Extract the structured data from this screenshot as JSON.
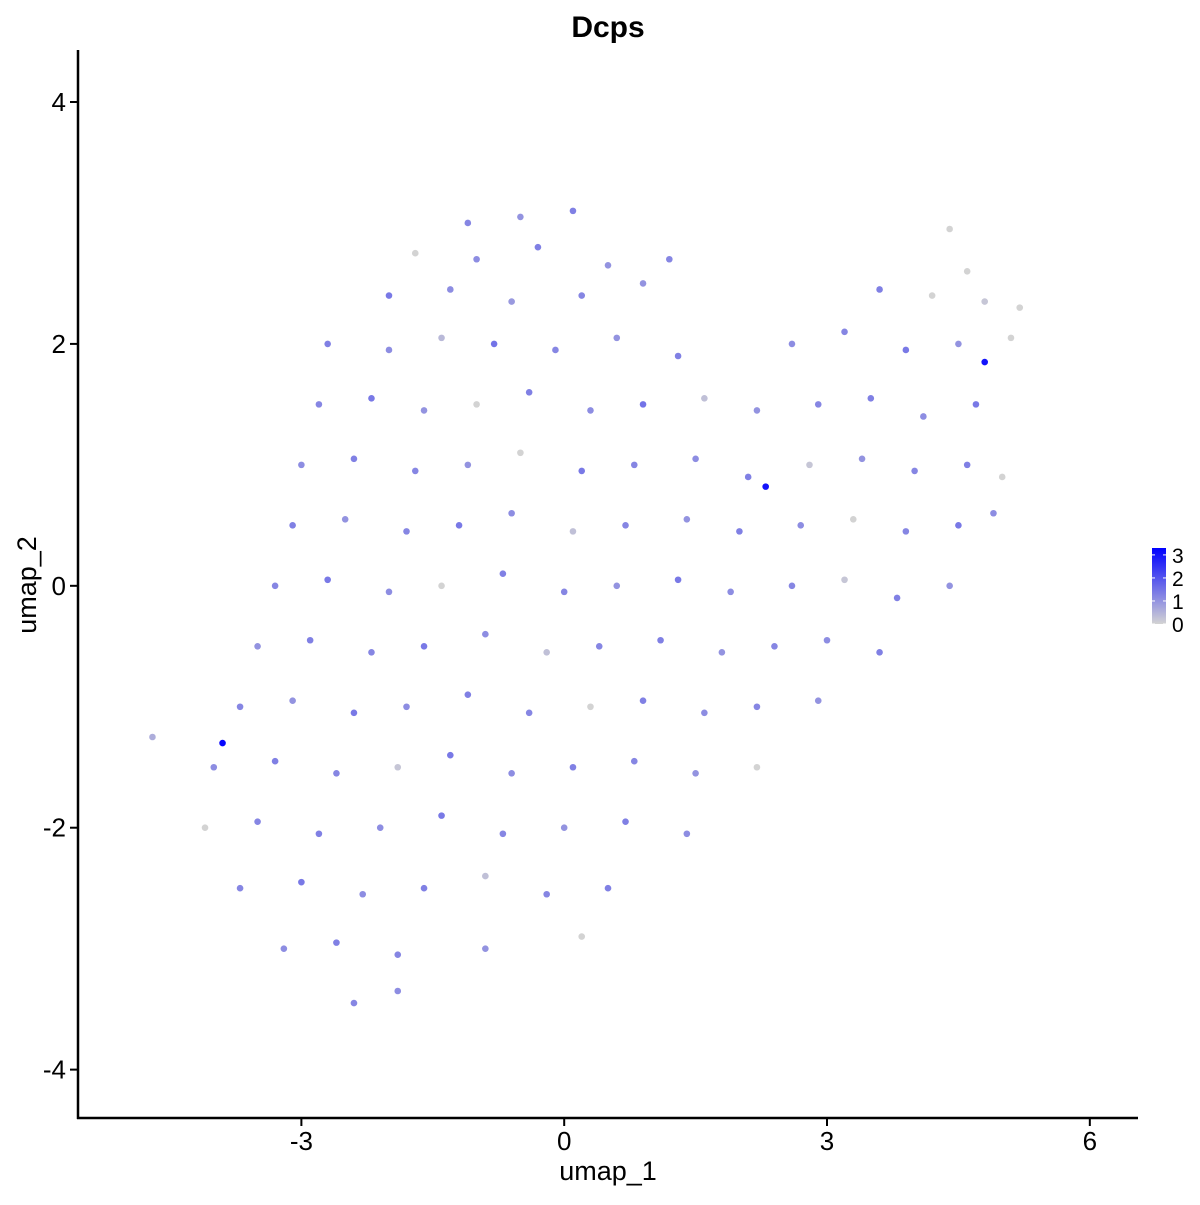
{
  "chart_data": {
    "type": "scatter",
    "title": "Dcps",
    "xlabel": "umap_1",
    "ylabel": "umap_2",
    "xlim": [
      -5.55,
      6.55
    ],
    "ylim": [
      -4.4,
      4.43
    ],
    "xticks": [
      -3,
      0,
      3,
      6
    ],
    "yticks": [
      -4,
      -2,
      0,
      2,
      4
    ],
    "x": [
      -1.1,
      -0.5,
      0.1,
      4.4,
      -1.7,
      -1.0,
      -0.3,
      0.5,
      1.2,
      4.6,
      -2.0,
      -1.3,
      -0.6,
      0.2,
      0.9,
      3.6,
      4.2,
      4.8,
      5.2,
      -2.7,
      -2.0,
      -1.4,
      -0.8,
      -0.1,
      0.6,
      1.3,
      2.6,
      3.2,
      3.9,
      4.5,
      5.1,
      -2.8,
      -2.2,
      -1.6,
      -1.0,
      -0.4,
      0.3,
      0.9,
      1.6,
      2.2,
      2.9,
      3.5,
      4.1,
      4.7,
      -3.0,
      -2.4,
      -1.7,
      -1.1,
      -0.5,
      0.2,
      0.8,
      1.5,
      2.1,
      2.8,
      3.4,
      4.0,
      4.6,
      5.0,
      -3.1,
      -2.5,
      -1.8,
      -1.2,
      -0.6,
      0.1,
      0.7,
      1.4,
      2.0,
      2.7,
      3.3,
      3.9,
      4.5,
      4.9,
      -3.3,
      -2.7,
      -2.0,
      -1.4,
      -0.7,
      0.0,
      0.6,
      1.3,
      1.9,
      2.6,
      3.2,
      3.8,
      4.4,
      -3.5,
      -2.9,
      -2.2,
      -1.6,
      -0.9,
      -0.2,
      0.4,
      1.1,
      1.8,
      2.4,
      3.0,
      3.6,
      -3.7,
      -3.1,
      -2.4,
      -1.8,
      -1.1,
      -0.4,
      0.3,
      0.9,
      1.6,
      2.2,
      2.9,
      -4.0,
      -3.3,
      -2.6,
      -1.9,
      -1.3,
      -0.6,
      0.1,
      0.8,
      1.5,
      2.2,
      -4.1,
      -3.5,
      -2.8,
      -2.1,
      -1.4,
      -0.7,
      0.0,
      0.7,
      1.4,
      -3.7,
      -3.0,
      -2.3,
      -1.6,
      -0.9,
      -0.2,
      0.5,
      -3.2,
      -2.6,
      -1.9,
      -0.9,
      0.2,
      -2.4,
      -1.9,
      -4.7,
      -3.9,
      2.3,
      4.8
    ],
    "values": [
      3.0,
      3.05,
      3.1,
      2.95,
      2.75,
      2.7,
      2.8,
      2.65,
      2.7,
      2.6,
      2.4,
      2.45,
      2.35,
      2.4,
      2.5,
      2.45,
      2.4,
      2.35,
      2.3,
      2.0,
      1.95,
      2.05,
      2.0,
      1.95,
      2.05,
      1.9,
      2.0,
      2.1,
      1.95,
      2.0,
      2.05,
      1.5,
      1.55,
      1.45,
      1.5,
      1.6,
      1.45,
      1.5,
      1.55,
      1.45,
      1.5,
      1.55,
      1.4,
      1.5,
      1.0,
      1.05,
      0.95,
      1.0,
      1.1,
      0.95,
      1.0,
      1.05,
      0.9,
      1.0,
      1.05,
      0.95,
      1.0,
      0.9,
      0.5,
      0.55,
      0.45,
      0.5,
      0.6,
      0.45,
      0.5,
      0.55,
      0.45,
      0.5,
      0.55,
      0.45,
      0.5,
      0.6,
      0.0,
      0.05,
      -0.05,
      0.0,
      0.1,
      -0.05,
      0.0,
      0.05,
      -0.05,
      0.0,
      0.05,
      -0.1,
      0.0,
      -0.5,
      -0.45,
      -0.55,
      -0.5,
      -0.4,
      -0.55,
      -0.5,
      -0.45,
      -0.55,
      -0.5,
      -0.45,
      -0.55,
      -1.0,
      -0.95,
      -1.05,
      -1.0,
      -0.9,
      -1.05,
      -1.0,
      -0.95,
      -1.05,
      -1.0,
      -0.95,
      -1.5,
      -1.45,
      -1.55,
      -1.5,
      -1.4,
      -1.55,
      -1.5,
      -1.45,
      -1.55,
      -1.5,
      -2.0,
      -1.95,
      -2.05,
      -2.0,
      -1.9,
      -2.05,
      -2.0,
      -1.95,
      -2.05,
      -2.5,
      -2.45,
      -2.55,
      -2.5,
      -2.4,
      -2.55,
      -2.5,
      -3.0,
      -2.95,
      -3.05,
      -3.0,
      -2.9,
      -3.45,
      -3.35,
      -1.25,
      -1.3,
      0.82,
      1.85
    ],
    "expression": [
      1.2,
      1.0,
      1.3,
      0,
      0,
      1.1,
      1.3,
      1.0,
      1.2,
      0,
      1.4,
      1.1,
      0.9,
      1.2,
      1.0,
      1.3,
      0,
      0.2,
      0,
      1.3,
      1.1,
      0.4,
      1.5,
      1.2,
      1.0,
      1.3,
      1.1,
      1.2,
      1.4,
      1.0,
      0,
      1.2,
      1.4,
      1.0,
      0,
      1.3,
      1.1,
      1.5,
      0.3,
      1.0,
      1.2,
      1.3,
      1.1,
      1.4,
      1.1,
      1.3,
      1.2,
      1.0,
      0,
      1.4,
      1.2,
      1.1,
      1.3,
      0.2,
      1.0,
      1.2,
      1.3,
      0,
      1.3,
      1.0,
      1.2,
      1.4,
      1.1,
      0.3,
      1.2,
      1.0,
      1.3,
      1.1,
      0,
      1.2,
      1.4,
      1.1,
      1.2,
      1.4,
      1.1,
      0,
      1.3,
      1.2,
      1.0,
      1.4,
      1.1,
      1.2,
      0.2,
      1.3,
      1.0,
      1.0,
      1.3,
      1.2,
      1.4,
      1.1,
      0.3,
      1.2,
      1.3,
      1.0,
      1.2,
      1.1,
      1.3,
      1.2,
      1.0,
      1.4,
      1.1,
      1.3,
      1.2,
      0,
      1.3,
      1.1,
      1.2,
      1.0,
      1.1,
      1.3,
      1.2,
      0.2,
      1.4,
      1.1,
      1.3,
      1.2,
      1.0,
      0,
      0,
      1.2,
      1.3,
      1.1,
      1.4,
      1.2,
      1.0,
      1.3,
      1.1,
      1.2,
      1.4,
      1.1,
      1.3,
      0.3,
      1.2,
      1.3,
      1.1,
      1.3,
      1.2,
      1.0,
      0,
      1.2,
      1.1,
      0.6,
      3.2,
      3.0,
      3.0
    ],
    "colorbar": {
      "lim": [
        0,
        3.3
      ],
      "ticks": [
        0,
        1,
        2,
        3
      ],
      "colors": [
        "#d3d3d3",
        "#0000ff"
      ]
    }
  }
}
